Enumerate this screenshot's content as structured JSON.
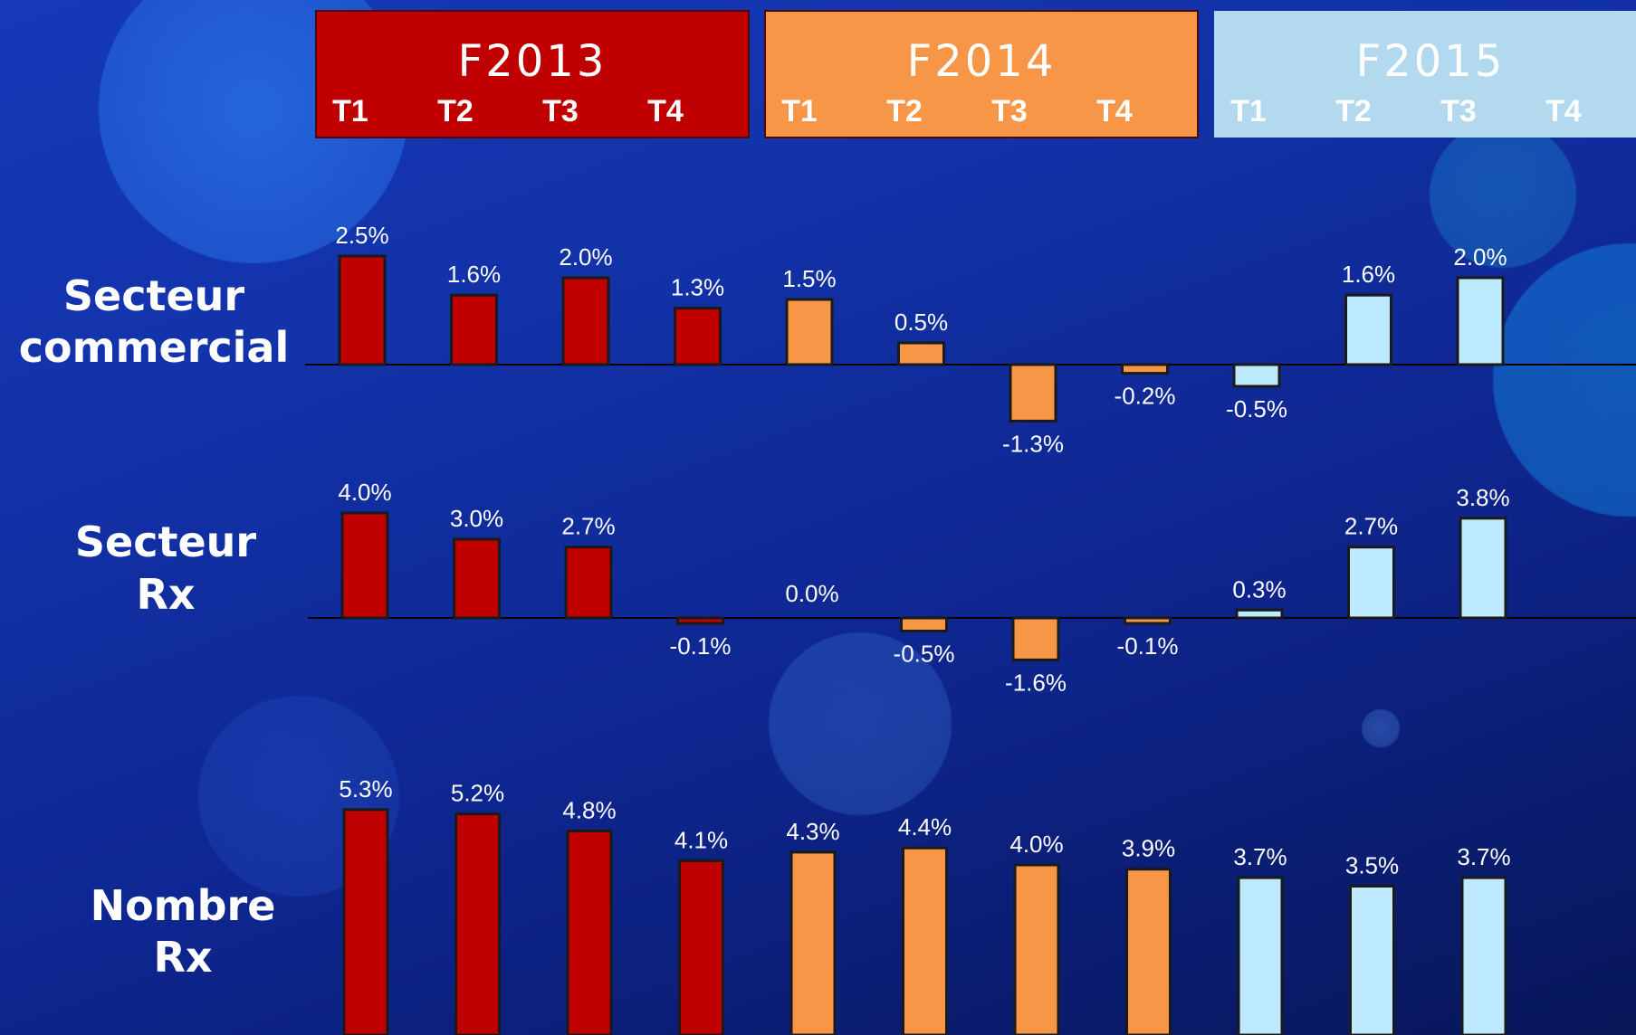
{
  "header": {
    "years": [
      {
        "label": "F2013",
        "color": "#c00000",
        "quarters": [
          "T1",
          "T2",
          "T3",
          "T4"
        ]
      },
      {
        "label": "F2014",
        "color": "#f79646",
        "quarters": [
          "T1",
          "T2",
          "T3",
          "T4"
        ]
      },
      {
        "label": "F2015",
        "color": "#b3d9ee",
        "quarters": [
          "T1",
          "T2",
          "T3",
          "T4"
        ]
      }
    ]
  },
  "chart_data": [
    {
      "type": "bar",
      "title": "Secteur commercial",
      "categories": [
        "F2013 T1",
        "F2013 T2",
        "F2013 T3",
        "F2013 T4",
        "F2014 T1",
        "F2014 T2",
        "F2014 T3",
        "F2014 T4",
        "F2015 T1",
        "F2015 T2",
        "F2015 T3"
      ],
      "values": [
        2.5,
        1.6,
        2.0,
        1.3,
        1.5,
        0.5,
        -1.3,
        -0.2,
        -0.5,
        1.6,
        2.0
      ],
      "labels": [
        "2.5%",
        "1.6%",
        "2.0%",
        "1.3%",
        "1.5%",
        "0.5%",
        "-1.3%",
        "-0.2%",
        "-0.5%",
        "1.6%",
        "2.0%"
      ]
    },
    {
      "type": "bar",
      "title": "Secteur Rx",
      "categories": [
        "F2013 T1",
        "F2013 T2",
        "F2013 T3",
        "F2013 T4",
        "F2014 T1",
        "F2014 T2",
        "F2014 T3",
        "F2014 T4",
        "F2015 T1",
        "F2015 T2",
        "F2015 T3"
      ],
      "values": [
        4.0,
        3.0,
        2.7,
        -0.1,
        0.0,
        -0.5,
        -1.6,
        -0.1,
        0.3,
        2.7,
        3.8
      ],
      "labels": [
        "4.0%",
        "3.0%",
        "2.7%",
        "-0.1%",
        "0.0%",
        "-0.5%",
        "-1.6%",
        "-0.1%",
        "0.3%",
        "2.7%",
        "3.8%"
      ]
    },
    {
      "type": "bar",
      "title": "Nombre Rx",
      "categories": [
        "F2013 T1",
        "F2013 T2",
        "F2013 T3",
        "F2013 T4",
        "F2014 T1",
        "F2014 T2",
        "F2014 T3",
        "F2014 T4",
        "F2015 T1",
        "F2015 T2",
        "F2015 T3"
      ],
      "values": [
        5.3,
        5.2,
        4.8,
        4.1,
        4.3,
        4.4,
        4.0,
        3.9,
        3.7,
        3.5,
        3.7
      ],
      "labels": [
        "5.3%",
        "5.2%",
        "4.8%",
        "4.1%",
        "4.3%",
        "4.4%",
        "4.0%",
        "3.9%",
        "3.7%",
        "3.5%",
        "3.7%"
      ]
    }
  ],
  "rows": [
    {
      "label_lines": [
        "Secteur",
        "commercial"
      ]
    },
    {
      "label_lines": [
        "Secteur",
        "Rx"
      ]
    },
    {
      "label_lines": [
        "Nombre",
        "Rx"
      ]
    }
  ],
  "bar_colors": [
    "#c00000",
    "#c00000",
    "#c00000",
    "#c00000",
    "#f79646",
    "#f79646",
    "#f79646",
    "#f79646",
    "#bdeaff",
    "#bdeaff",
    "#bdeaff"
  ]
}
